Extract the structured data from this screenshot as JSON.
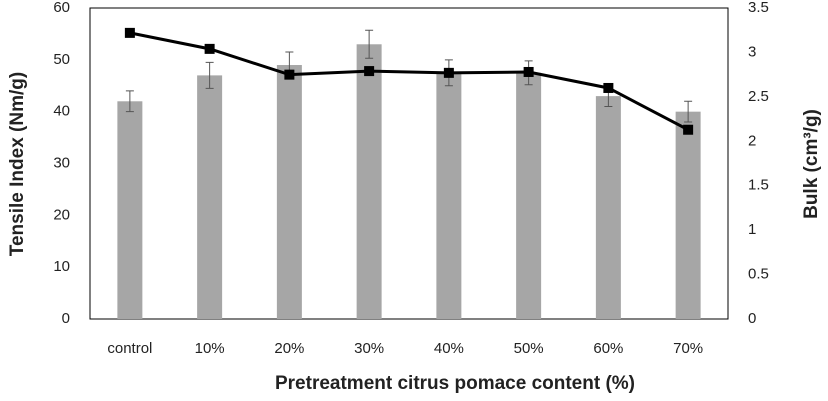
{
  "chart_data": {
    "type": "bar",
    "categories": [
      "control",
      "10%",
      "20%",
      "30%",
      "40%",
      "50%",
      "60%",
      "70%"
    ],
    "x_label": "Pretreatment citrus pomace content (%)",
    "y_label": "Tensile Index (Nm/g)",
    "y2_label": "Bulk (cm³/g)",
    "ylim": [
      0,
      60
    ],
    "yticks": [
      0,
      10,
      20,
      30,
      40,
      50,
      60
    ],
    "y2lim": [
      0,
      3.5
    ],
    "y2ticks": [
      0,
      0.5,
      1,
      1.5,
      2,
      2.5,
      3,
      3.5
    ],
    "series": [
      {
        "type": "bar",
        "color": "#a6a6a6",
        "values": [
          42,
          47,
          49,
          53,
          47.5,
          47.5,
          43,
          40
        ],
        "errors": [
          2,
          2.5,
          2.5,
          2.7,
          2.5,
          2.3,
          2,
          2
        ]
      },
      {
        "type": "line",
        "axis": "y2",
        "color": "#000000",
        "values": [
          3.22,
          3.04,
          2.75,
          2.79,
          2.77,
          2.78,
          2.6,
          2.13
        ]
      }
    ]
  }
}
